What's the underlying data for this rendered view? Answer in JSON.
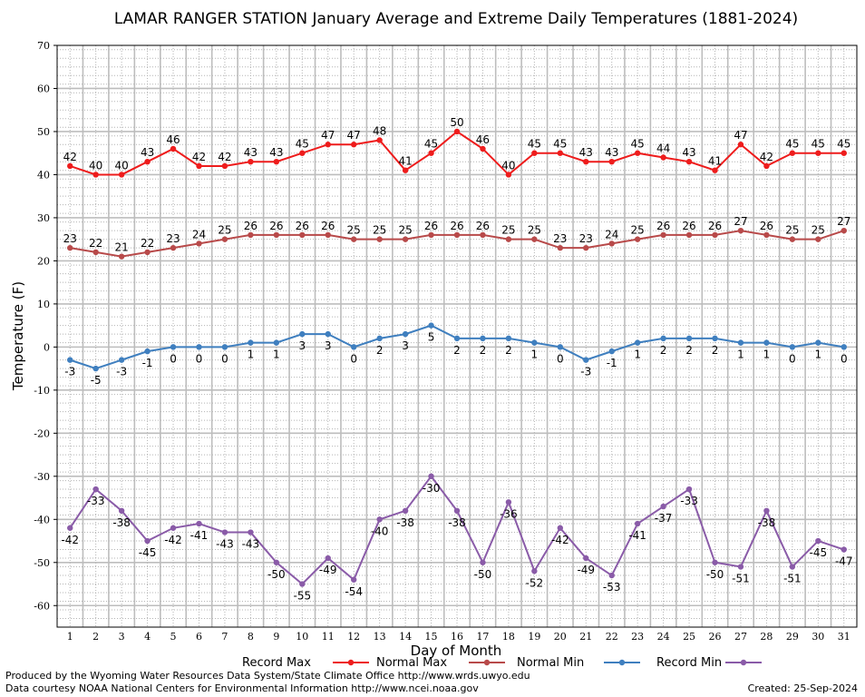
{
  "footer": {
    "produced_by": "Produced by the Wyoming Water Resources Data System/State Climate Office http://www.wrds.uwyo.edu",
    "courtesy": "Data courtesy NOAA National Centers for Environmental Information http://www.ncei.noaa.gov",
    "created": "Created:  25-Sep-2024"
  },
  "chart_data": {
    "type": "line",
    "title": "LAMAR RANGER STATION January Average and Extreme Daily Temperatures (1881-2024)",
    "xlabel": "Day of Month",
    "ylabel": "Temperature (F)",
    "x": [
      1,
      2,
      3,
      4,
      5,
      6,
      7,
      8,
      9,
      10,
      11,
      12,
      13,
      14,
      15,
      16,
      17,
      18,
      19,
      20,
      21,
      22,
      23,
      24,
      25,
      26,
      27,
      28,
      29,
      30,
      31
    ],
    "ylim": [
      -65,
      70
    ],
    "yticks": [
      70,
      60,
      50,
      40,
      30,
      20,
      10,
      0,
      -10,
      -20,
      -30,
      -40,
      -50,
      -60
    ],
    "grid": true,
    "legend_position": "bottom",
    "series": [
      {
        "name": "Record Max",
        "color": "#ee1c1c",
        "label_position": "above",
        "values": [
          42,
          40,
          40,
          43,
          46,
          42,
          42,
          43,
          43,
          45,
          47,
          47,
          48,
          41,
          45,
          50,
          46,
          40,
          45,
          45,
          43,
          43,
          45,
          44,
          43,
          41,
          47,
          42,
          45,
          45,
          45
        ]
      },
      {
        "name": "Normal Max",
        "color": "#b84a4a",
        "label_position": "above",
        "values": [
          23,
          22,
          21,
          22,
          23,
          24,
          25,
          26,
          26,
          26,
          26,
          25,
          25,
          25,
          26,
          26,
          26,
          25,
          25,
          23,
          23,
          24,
          25,
          26,
          26,
          26,
          27,
          26,
          25,
          25,
          27
        ]
      },
      {
        "name": "Normal Min",
        "color": "#3f7fbf",
        "label_position": "below",
        "values": [
          -3,
          -5,
          -3,
          -1,
          0,
          0,
          0,
          1,
          1,
          3,
          3,
          0,
          2,
          3,
          5,
          2,
          2,
          2,
          1,
          0,
          -3,
          -1,
          1,
          2,
          2,
          2,
          1,
          1,
          0,
          1,
          0
        ]
      },
      {
        "name": "Record Min",
        "color": "#8a5ba8",
        "label_position": "below",
        "values": [
          -42,
          -33,
          -38,
          -45,
          -42,
          -41,
          -43,
          -43,
          -50,
          -55,
          -49,
          -54,
          -40,
          -38,
          -30,
          -38,
          -50,
          -36,
          -52,
          -42,
          -49,
          -53,
          -41,
          -37,
          -33,
          -50,
          -51,
          -38,
          -51,
          -45,
          -47
        ]
      }
    ]
  }
}
